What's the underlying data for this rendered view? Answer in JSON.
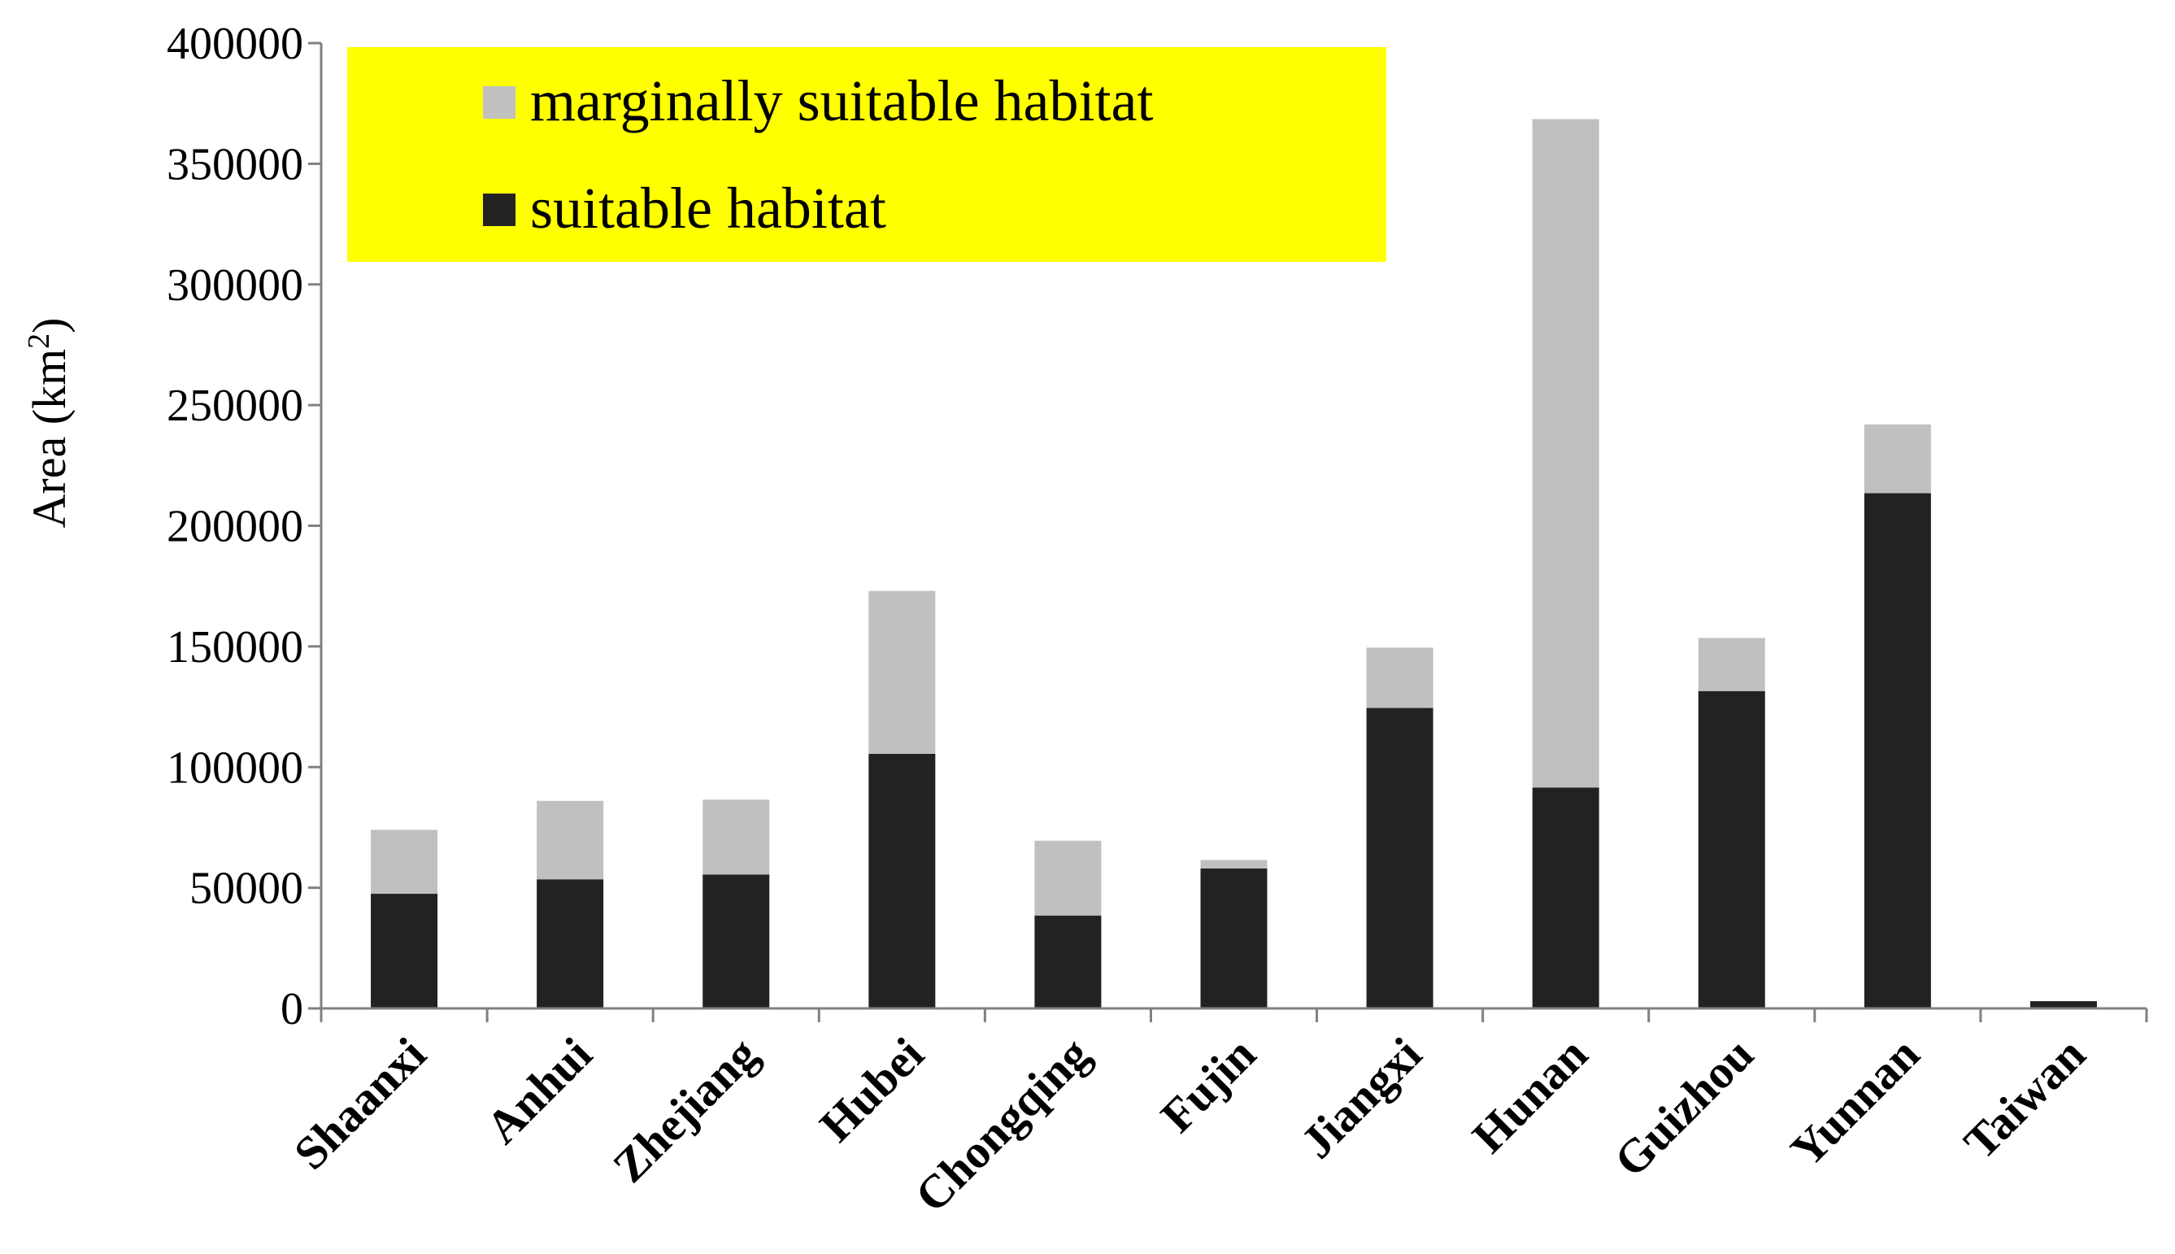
{
  "chart_data": {
    "type": "bar",
    "stacked": true,
    "categories": [
      "Shaanxi",
      "Anhui",
      "Zhejiang",
      "Hubei",
      "Chongqing",
      "Fujin",
      "Jiangxi",
      "Hunan",
      "Guizhou",
      "Yunnan",
      "Taiwan"
    ],
    "series": [
      {
        "name": "suitable habitat",
        "color": "#222222",
        "values": [
          47500,
          53500,
          55500,
          105500,
          38500,
          58000,
          124500,
          91500,
          131500,
          213500,
          3000
        ]
      },
      {
        "name": "marginally suitable habitat",
        "color": "#c0c0c0",
        "values": [
          26500,
          32500,
          31000,
          67500,
          31000,
          3500,
          25000,
          277000,
          22000,
          28500,
          0
        ]
      }
    ],
    "ylabel": "Area (km",
    "ylabel_sup": "2",
    "ylabel_close": ")",
    "ylim": [
      0,
      400000
    ],
    "yticks": [
      "0",
      "50000",
      "100000",
      "150000",
      "200000",
      "250000",
      "300000",
      "350000",
      "400000"
    ],
    "legend": {
      "position": "top-left",
      "background": "#ffff00",
      "entries": [
        "marginally suitable habitat",
        "suitable habitat"
      ]
    },
    "grid": false
  }
}
